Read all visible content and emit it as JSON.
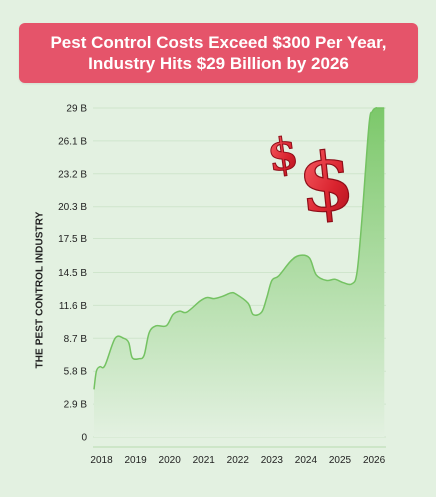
{
  "title": {
    "line1": "Pest Control Costs Exceed $300 Per Year,",
    "line2": "Industry Hits $29 Billion by 2026"
  },
  "colors": {
    "background": "#e3f1e1",
    "banner": "#e5546a",
    "area_top": "#7cc86a",
    "area_bottom": "#e3f1e1",
    "dollar_sign": "#e0303a"
  },
  "decorations": {
    "dollar_symbol": "$"
  },
  "chart_data": {
    "type": "area",
    "ylabel": "THE PEST CONTROL INDUSTRY",
    "xlabel": "",
    "y_ticks": [
      "0",
      "2.9 B",
      "5.8 B",
      "8.7 B",
      "11.6 B",
      "14.5 B",
      "17.5 B",
      "20.3 B",
      "23.2 B",
      "26.1 B",
      "29 B"
    ],
    "y_tick_values": [
      0,
      2.9,
      5.8,
      8.7,
      11.6,
      14.5,
      17.5,
      20.3,
      23.2,
      26.1,
      29
    ],
    "x_ticks": [
      "2018",
      "2019",
      "2020",
      "2021",
      "2022",
      "2023",
      "2024",
      "2025",
      "2026"
    ],
    "x_tick_values": [
      2018,
      2019,
      2020,
      2021,
      2022,
      2023,
      2024,
      2025,
      2026
    ],
    "xlim": [
      2017.75,
      2026.35
    ],
    "ylim": [
      0,
      29
    ],
    "grid": true,
    "series": [
      {
        "x": [
          2017.78,
          2017.85,
          2017.95,
          2018.1,
          2018.4,
          2018.65,
          2018.8,
          2018.9,
          2019.1,
          2019.25,
          2019.4,
          2019.6,
          2019.9,
          2020.1,
          2020.3,
          2020.5,
          2020.9,
          2021.1,
          2021.3,
          2021.55,
          2021.8,
          2021.95,
          2022.3,
          2022.45,
          2022.7,
          2022.85,
          2023.0,
          2023.2,
          2023.55,
          2023.8,
          2024.1,
          2024.3,
          2024.6,
          2024.85,
          2025.1,
          2025.35,
          2025.5,
          2025.65,
          2025.85,
          2025.95,
          2026.05,
          2026.1,
          2026.3
        ],
        "y": [
          4.2,
          5.8,
          6.2,
          6.3,
          8.7,
          8.7,
          8.3,
          7.0,
          6.9,
          7.2,
          9.2,
          9.8,
          9.8,
          10.8,
          11.1,
          11.0,
          12.0,
          12.3,
          12.2,
          12.4,
          12.7,
          12.6,
          11.8,
          10.8,
          11.0,
          12.3,
          13.8,
          14.2,
          15.5,
          16.0,
          15.8,
          14.3,
          13.8,
          13.9,
          13.6,
          13.5,
          14.5,
          19.5,
          27.5,
          28.7,
          29.0,
          29.0,
          29.0
        ]
      }
    ]
  }
}
